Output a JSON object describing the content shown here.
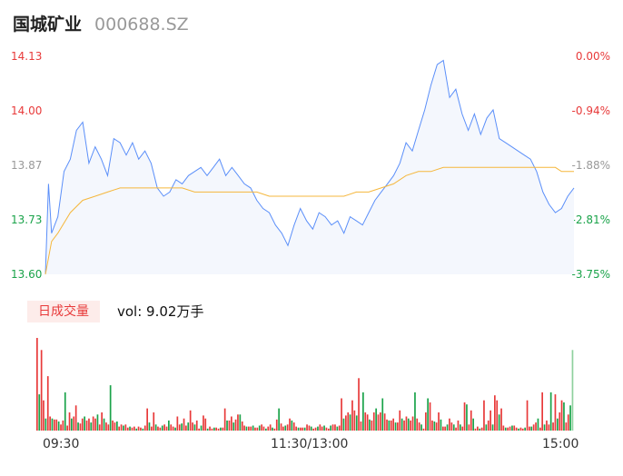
{
  "header": {
    "name": "国城矿业",
    "code": "000688.SZ"
  },
  "volume": {
    "tab_label": "日成交量",
    "vol_label": "vol: 9.02万手"
  },
  "time_labels": [
    "09:30",
    "11:30/13:00",
    "15:00"
  ],
  "colors": {
    "price_line": "#5b8ff9",
    "avg_line": "#f5b73c",
    "up": "#e83a3a",
    "down": "#1aa34a",
    "neutral": "#999999"
  },
  "chart_data": [
    {
      "type": "line",
      "y_ticks_left": [
        "14.13",
        "14.00",
        "13.87",
        "13.73",
        "13.60"
      ],
      "y_ticks_right": [
        "0.00%",
        "-0.94%",
        "-1.88%",
        "-2.81%",
        "-3.75%"
      ],
      "ylim": [
        13.6,
        14.13
      ],
      "series": [
        {
          "values": [
            13.6,
            13.82,
            13.7,
            13.74,
            13.85,
            13.88,
            13.95,
            13.97,
            13.87,
            13.91,
            13.88,
            13.84,
            13.93,
            13.92,
            13.89,
            13.92,
            13.88,
            13.9,
            13.87,
            13.81,
            13.79,
            13.8,
            13.83,
            13.82,
            13.84,
            13.85,
            13.86,
            13.84,
            13.86,
            13.88,
            13.84,
            13.86,
            13.84,
            13.82,
            13.81,
            13.78,
            13.76,
            13.75,
            13.72,
            13.7,
            13.67,
            13.72,
            13.76,
            13.73,
            13.71,
            13.75,
            13.74,
            13.72,
            13.73,
            13.7,
            13.74,
            13.73,
            13.72,
            13.75,
            13.78,
            13.8,
            13.82,
            13.84,
            13.87,
            13.92,
            13.9,
            13.95,
            14.0,
            14.06,
            14.11,
            14.12,
            14.03,
            14.05,
            13.99,
            13.95,
            13.99,
            13.94,
            13.98,
            14.0,
            13.93,
            13.92,
            13.91,
            13.9,
            13.89,
            13.88,
            13.85,
            13.8,
            13.77,
            13.75,
            13.76,
            13.79,
            13.81
          ],
          "x": [
            0,
            1,
            2,
            4,
            6,
            8,
            10,
            12,
            14,
            16,
            18,
            20,
            22,
            24,
            26,
            28,
            30,
            32,
            34,
            36,
            38,
            40,
            42,
            44,
            46,
            48,
            50,
            52,
            54,
            56,
            58,
            60,
            62,
            64,
            66,
            68,
            70,
            72,
            74,
            76,
            78,
            80,
            82,
            84,
            86,
            88,
            90,
            92,
            94,
            96,
            98,
            100,
            102,
            104,
            106,
            108,
            110,
            112,
            114,
            116,
            118,
            120,
            122,
            124,
            126,
            128,
            130,
            132,
            134,
            136,
            138,
            140,
            142,
            144,
            146,
            148,
            150,
            152,
            154,
            156,
            158,
            160,
            162,
            164,
            166,
            168,
            170
          ]
        },
        {
          "values": [
            13.6,
            13.68,
            13.7,
            13.75,
            13.78,
            13.79,
            13.8,
            13.81,
            13.81,
            13.81,
            13.81,
            13.81,
            13.81,
            13.8,
            13.8,
            13.8,
            13.8,
            13.8,
            13.8,
            13.79,
            13.79,
            13.79,
            13.79,
            13.79,
            13.79,
            13.79,
            13.8,
            13.8,
            13.81,
            13.82,
            13.84,
            13.85,
            13.85,
            13.86,
            13.86,
            13.86,
            13.86,
            13.86,
            13.86,
            13.86,
            13.86,
            13.86,
            13.86,
            13.86,
            13.85,
            13.85
          ],
          "x": [
            0,
            2,
            4,
            8,
            12,
            16,
            20,
            24,
            28,
            32,
            36,
            40,
            44,
            48,
            52,
            56,
            60,
            64,
            68,
            72,
            76,
            80,
            84,
            88,
            92,
            96,
            100,
            104,
            108,
            112,
            116,
            120,
            124,
            128,
            132,
            136,
            140,
            144,
            148,
            152,
            156,
            160,
            162,
            164,
            166,
            170
          ]
        }
      ]
    },
    {
      "type": "bar",
      "values": [
        92,
        36,
        80,
        30,
        12,
        54,
        14,
        12,
        11,
        11,
        9,
        6,
        10,
        38,
        5,
        18,
        12,
        14,
        25,
        8,
        7,
        12,
        14,
        10,
        12,
        8,
        14,
        12,
        16,
        6,
        18,
        12,
        8,
        6,
        45,
        10,
        8,
        9,
        4,
        6,
        5,
        6,
        3,
        4,
        3,
        4,
        2,
        4,
        3,
        2,
        5,
        22,
        8,
        4,
        18,
        6,
        4,
        3,
        5,
        6,
        4,
        10,
        6,
        4,
        3,
        14,
        6,
        7,
        12,
        5,
        8,
        20,
        8,
        6,
        10,
        2,
        5,
        15,
        12,
        2,
        4,
        2,
        3,
        3,
        2,
        3,
        3,
        22,
        10,
        10,
        14,
        8,
        11,
        16,
        16,
        9,
        5,
        4,
        4,
        4,
        5,
        3,
        3,
        5,
        6,
        4,
        2,
        4,
        6,
        3,
        2,
        11,
        22,
        7,
        4,
        5,
        6,
        12,
        10,
        8,
        4,
        3,
        3,
        3,
        3,
        6,
        5,
        4,
        2,
        3,
        4,
        6,
        4,
        5,
        3,
        2,
        5,
        6,
        6,
        4,
        5,
        32,
        12,
        15,
        18,
        16,
        30,
        20,
        15,
        52,
        9,
        38,
        18,
        16,
        11,
        10,
        18,
        22,
        16,
        18,
        32,
        17,
        11,
        10,
        10,
        12,
        8,
        8,
        20,
        12,
        10,
        14,
        12,
        10,
        14,
        38,
        12,
        8,
        6,
        2,
        18,
        32,
        28,
        10,
        9,
        8,
        18,
        11,
        4,
        4,
        6,
        12,
        8,
        6,
        3,
        10,
        6,
        4,
        28,
        26,
        6,
        20,
        12,
        2,
        4,
        2,
        3,
        30,
        6,
        10,
        20,
        6,
        35,
        30,
        16,
        22,
        5,
        3,
        3,
        4,
        5,
        5,
        3,
        2,
        3,
        2,
        3,
        30,
        4,
        4,
        6,
        8,
        12,
        3,
        38,
        6,
        10,
        6,
        38,
        8,
        36,
        12,
        18,
        30,
        28,
        8,
        16,
        25,
        80
      ],
      "colors": "mixed"
    }
  ]
}
